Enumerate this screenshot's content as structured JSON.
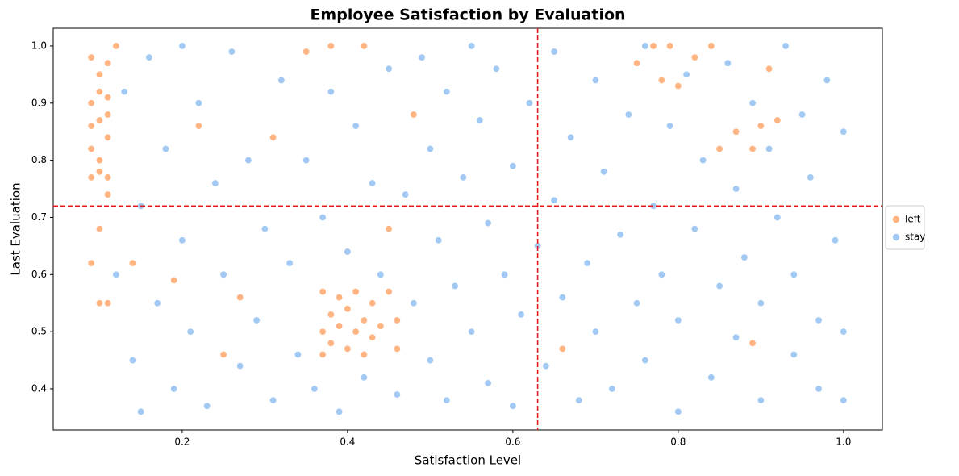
{
  "chart_data": {
    "type": "scatter",
    "title": "Employee Satisfaction by Evaluation",
    "x_label": "Satisfaction Level",
    "y_label": "Last Evaluation",
    "xlim": [
      0.044,
      1.047
    ],
    "ylim": [
      0.328,
      1.031
    ],
    "xticks": [
      0.2,
      0.4,
      0.6,
      0.8,
      {
        "value": 1,
        "label": "1.0"
      }
    ],
    "yticks": [
      0.4,
      0.5,
      0.6,
      0.7,
      0.8,
      0.9,
      {
        "value": 1,
        "label": "1.0"
      }
    ],
    "reference_lines": {
      "x": 0.63,
      "y": 0.72,
      "color": "#e41a1c"
    },
    "legend": "right",
    "series": [
      {
        "name": "left",
        "color": "#ffb482",
        "x": [
          0.09,
          0.09,
          0.09,
          0.09,
          0.1,
          0.1,
          0.1,
          0.1,
          0.11,
          0.11,
          0.11,
          0.11,
          0.09,
          0.1,
          0.11,
          0.09,
          0.1,
          0.1,
          0.11,
          0.11,
          0.12,
          0.37,
          0.37,
          0.37,
          0.38,
          0.38,
          0.39,
          0.39,
          0.4,
          0.4,
          0.41,
          0.41,
          0.42,
          0.42,
          0.43,
          0.43,
          0.44,
          0.45,
          0.46,
          0.46,
          0.45,
          0.77,
          0.79,
          0.82,
          0.84,
          0.85,
          0.87,
          0.89,
          0.9,
          0.91,
          0.92,
          0.75,
          0.78,
          0.8,
          0.89,
          0.66,
          0.22,
          0.27,
          0.31,
          0.35,
          0.38,
          0.42,
          0.48,
          0.14,
          0.19,
          0.25
        ],
        "y": [
          0.98,
          0.9,
          0.82,
          0.77,
          0.95,
          0.87,
          0.8,
          0.78,
          0.97,
          0.91,
          0.84,
          0.77,
          0.86,
          0.92,
          0.88,
          0.62,
          0.68,
          0.55,
          0.55,
          0.74,
          1.0,
          0.57,
          0.5,
          0.46,
          0.53,
          0.48,
          0.56,
          0.51,
          0.54,
          0.47,
          0.57,
          0.5,
          0.52,
          0.46,
          0.55,
          0.49,
          0.51,
          0.57,
          0.47,
          0.52,
          0.68,
          1.0,
          1.0,
          0.98,
          1.0,
          0.82,
          0.85,
          0.82,
          0.86,
          0.96,
          0.87,
          0.97,
          0.94,
          0.93,
          0.48,
          0.47,
          0.86,
          0.56,
          0.84,
          0.99,
          1.0,
          1.0,
          0.88,
          0.62,
          0.59,
          0.46
        ]
      },
      {
        "name": "stay",
        "color": "#a1c9f4",
        "x": [
          0.12,
          0.13,
          0.14,
          0.15,
          0.15,
          0.16,
          0.17,
          0.18,
          0.19,
          0.2,
          0.2,
          0.21,
          0.22,
          0.23,
          0.24,
          0.25,
          0.26,
          0.27,
          0.28,
          0.29,
          0.3,
          0.31,
          0.32,
          0.33,
          0.34,
          0.35,
          0.36,
          0.37,
          0.38,
          0.39,
          0.4,
          0.41,
          0.42,
          0.43,
          0.44,
          0.45,
          0.46,
          0.47,
          0.48,
          0.49,
          0.5,
          0.5,
          0.51,
          0.52,
          0.52,
          0.53,
          0.54,
          0.55,
          0.55,
          0.56,
          0.57,
          0.57,
          0.58,
          0.59,
          0.6,
          0.6,
          0.61,
          0.62,
          0.63,
          0.64,
          0.65,
          0.65,
          0.66,
          0.67,
          0.68,
          0.69,
          0.7,
          0.7,
          0.71,
          0.72,
          0.73,
          0.74,
          0.75,
          0.76,
          0.76,
          0.77,
          0.78,
          0.79,
          0.8,
          0.8,
          0.81,
          0.82,
          0.83,
          0.84,
          0.85,
          0.86,
          0.87,
          0.87,
          0.88,
          0.89,
          0.9,
          0.9,
          0.91,
          0.92,
          0.93,
          0.94,
          0.94,
          0.95,
          0.96,
          0.97,
          0.97,
          0.98,
          0.99,
          1.0,
          1.0,
          1.0
        ],
        "y": [
          0.6,
          0.92,
          0.45,
          0.36,
          0.72,
          0.98,
          0.55,
          0.82,
          0.4,
          1.0,
          0.66,
          0.5,
          0.9,
          0.37,
          0.76,
          0.6,
          0.99,
          0.44,
          0.8,
          0.52,
          0.68,
          0.38,
          0.94,
          0.62,
          0.46,
          0.8,
          0.4,
          0.7,
          0.92,
          0.36,
          0.64,
          0.86,
          0.42,
          0.76,
          0.6,
          0.96,
          0.39,
          0.74,
          0.55,
          0.98,
          0.45,
          0.82,
          0.66,
          0.38,
          0.92,
          0.58,
          0.77,
          1.0,
          0.5,
          0.87,
          0.41,
          0.69,
          0.96,
          0.6,
          0.79,
          0.37,
          0.53,
          0.9,
          0.65,
          0.44,
          0.99,
          0.73,
          0.56,
          0.84,
          0.38,
          0.62,
          0.94,
          0.5,
          0.78,
          0.4,
          0.67,
          0.88,
          0.55,
          1.0,
          0.45,
          0.72,
          0.6,
          0.86,
          0.36,
          0.52,
          0.95,
          0.68,
          0.8,
          0.42,
          0.58,
          0.97,
          0.49,
          0.75,
          0.63,
          0.9,
          0.38,
          0.55,
          0.82,
          0.7,
          1.0,
          0.46,
          0.6,
          0.88,
          0.77,
          0.4,
          0.52,
          0.94,
          0.66,
          0.85,
          0.5,
          0.38
        ]
      }
    ]
  }
}
